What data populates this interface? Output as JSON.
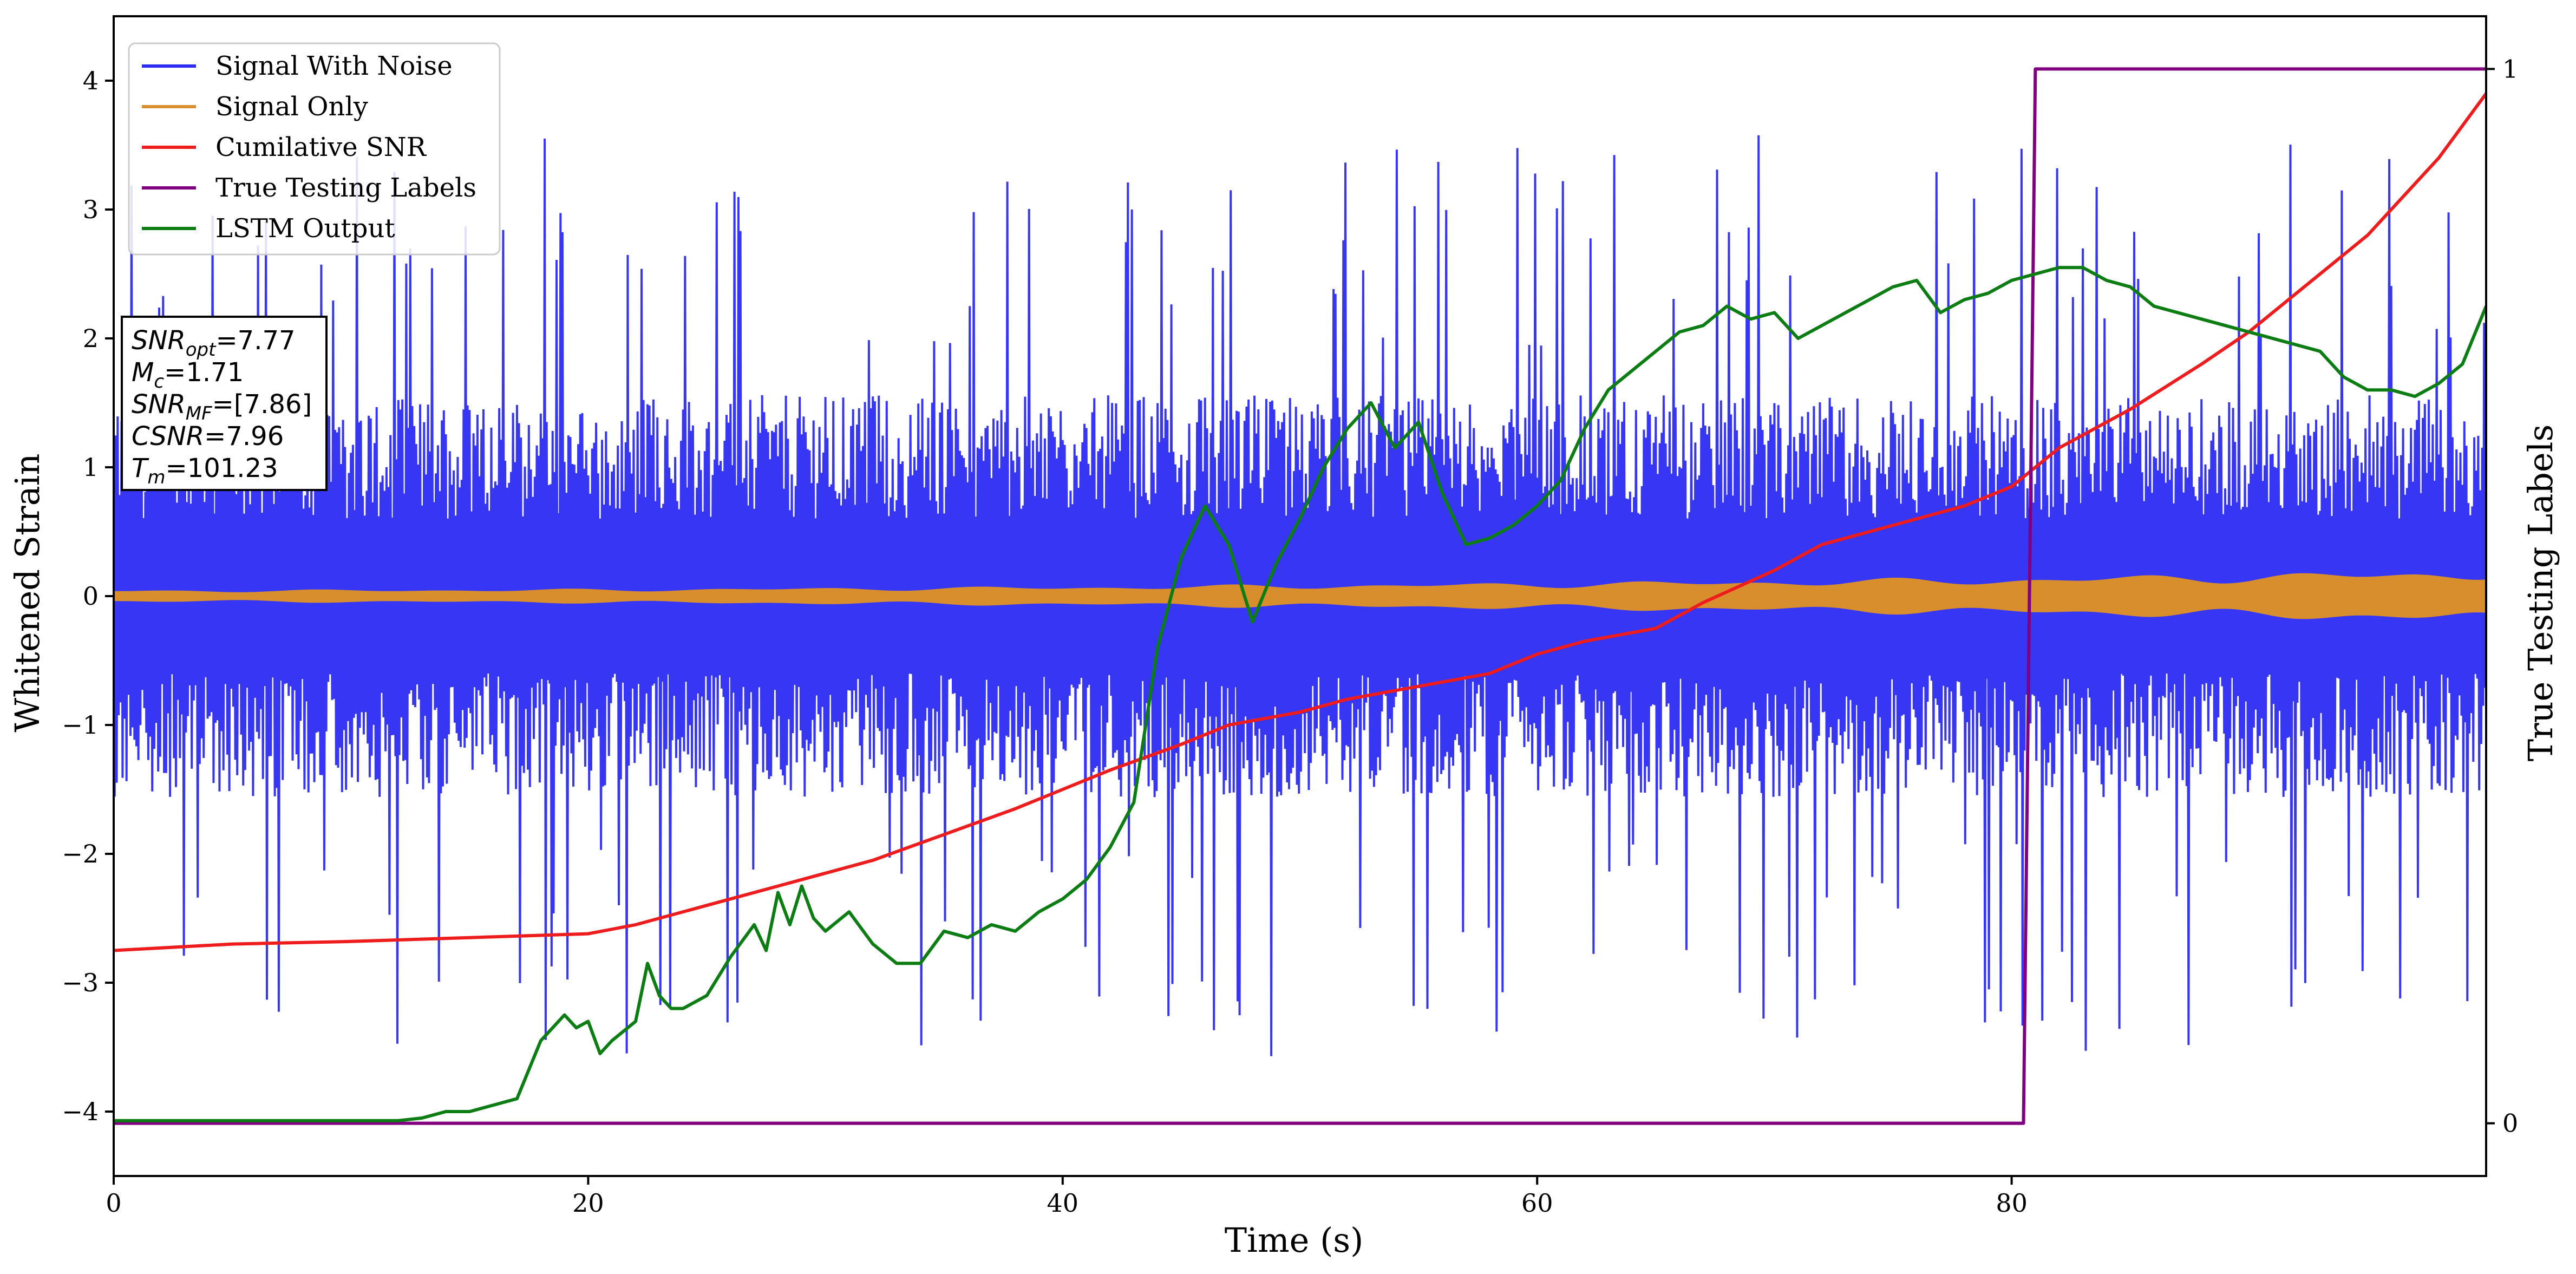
{
  "chart_data": {
    "type": "line",
    "xlabel": "Time (s)",
    "ylabel": "Whitened Strain",
    "y2label": "True Testing Labels",
    "xlim": [
      0,
      100
    ],
    "ylim": [
      -4.5,
      4.5
    ],
    "y2lim": [
      -0.05,
      1.05
    ],
    "xticks": [
      0,
      20,
      40,
      60,
      80
    ],
    "yticks": [
      -4,
      -3,
      -2,
      -1,
      0,
      1,
      2,
      3,
      4
    ],
    "y2ticks": [
      0,
      1
    ],
    "grid": false,
    "legend_position": "top-left",
    "colors": {
      "noise": "#2b2bf2",
      "signal": "#d98e2e",
      "snr": "#ee1c1c",
      "labels": "#800080",
      "lstm": "#0b7d12"
    },
    "series": [
      {
        "name": "Signal With Noise",
        "axis": "left",
        "style": "noise-band",
        "typical_amplitude": 1.2,
        "max_abs": 4.1
      },
      {
        "name": "Signal Only",
        "axis": "left",
        "style": "chirp-band",
        "envelope_x": [
          0,
          20,
          40,
          60,
          80,
          100
        ],
        "envelope_amp": [
          0.04,
          0.05,
          0.07,
          0.1,
          0.14,
          0.2
        ]
      },
      {
        "name": "Cumilative SNR",
        "axis": "left",
        "x": [
          0,
          5,
          10,
          15,
          20,
          22,
          25,
          28,
          30,
          32,
          35,
          38,
          40,
          42,
          45,
          47,
          50,
          52,
          55,
          58,
          60,
          62,
          65,
          67,
          70,
          72,
          75,
          78,
          80,
          82,
          85,
          88,
          90,
          92,
          95,
          98,
          100
        ],
        "y": [
          -2.75,
          -2.7,
          -2.68,
          -2.65,
          -2.62,
          -2.55,
          -2.4,
          -2.25,
          -2.15,
          -2.05,
          -1.85,
          -1.65,
          -1.5,
          -1.35,
          -1.15,
          -1.0,
          -0.9,
          -0.8,
          -0.7,
          -0.6,
          -0.45,
          -0.35,
          -0.25,
          -0.05,
          0.2,
          0.4,
          0.55,
          0.7,
          0.85,
          1.15,
          1.45,
          1.8,
          2.05,
          2.35,
          2.8,
          3.4,
          3.9
        ]
      },
      {
        "name": "True Testing Labels",
        "axis": "right",
        "x": [
          0,
          80.5,
          81,
          100
        ],
        "y": [
          0,
          0,
          1,
          1
        ]
      },
      {
        "name": "LSTM Output",
        "axis": "left",
        "x": [
          0,
          12,
          13,
          14,
          15,
          16,
          17,
          18,
          19,
          19.5,
          20,
          20.5,
          21,
          22,
          22.5,
          23,
          23.5,
          24,
          25,
          26,
          27,
          27.5,
          28,
          28.5,
          29,
          29.5,
          30,
          31,
          32,
          33,
          34,
          35,
          36,
          37,
          38,
          39,
          40,
          41,
          42,
          43,
          44,
          45,
          46,
          47,
          48,
          49,
          50,
          51,
          52,
          53,
          54,
          55,
          56,
          57,
          58,
          59,
          60,
          61,
          62,
          63,
          64,
          65,
          66,
          67,
          68,
          69,
          70,
          71,
          72,
          73,
          74,
          75,
          76,
          77,
          78,
          79,
          80,
          81,
          82,
          83,
          84,
          85,
          86,
          87,
          88,
          89,
          90,
          91,
          92,
          93,
          94,
          95,
          96,
          97,
          98,
          99,
          100
        ],
        "y": [
          -4.07,
          -4.07,
          -4.05,
          -4.0,
          -4.0,
          -3.95,
          -3.9,
          -3.45,
          -3.25,
          -3.35,
          -3.3,
          -3.55,
          -3.45,
          -3.3,
          -2.85,
          -3.1,
          -3.2,
          -3.2,
          -3.1,
          -2.8,
          -2.55,
          -2.75,
          -2.3,
          -2.55,
          -2.25,
          -2.5,
          -2.6,
          -2.45,
          -2.7,
          -2.85,
          -2.85,
          -2.6,
          -2.65,
          -2.55,
          -2.6,
          -2.45,
          -2.35,
          -2.2,
          -1.95,
          -1.6,
          -0.4,
          0.3,
          0.7,
          0.4,
          -0.2,
          0.25,
          0.6,
          1.0,
          1.3,
          1.5,
          1.15,
          1.35,
          0.8,
          0.4,
          0.45,
          0.55,
          0.7,
          0.9,
          1.3,
          1.6,
          1.75,
          1.9,
          2.05,
          2.1,
          2.25,
          2.15,
          2.2,
          2.0,
          2.1,
          2.2,
          2.3,
          2.4,
          2.45,
          2.2,
          2.3,
          2.35,
          2.45,
          2.5,
          2.55,
          2.55,
          2.45,
          2.4,
          2.25,
          2.2,
          2.15,
          2.1,
          2.05,
          2.0,
          1.95,
          1.9,
          1.7,
          1.6,
          1.6,
          1.55,
          1.65,
          1.8,
          2.25
        ]
      }
    ]
  },
  "info_box": {
    "lines": [
      {
        "main": "SNR",
        "sub": "opt",
        "value": "=7.77"
      },
      {
        "main": "M",
        "sub": "c",
        "value": "=1.71"
      },
      {
        "main": "SNR",
        "sub": "MF",
        "value": "=[7.86]"
      },
      {
        "main": "CSNR",
        "sub": "",
        "value": "=7.96"
      },
      {
        "main": "T",
        "sub": "m",
        "value": "=101.23"
      }
    ]
  }
}
